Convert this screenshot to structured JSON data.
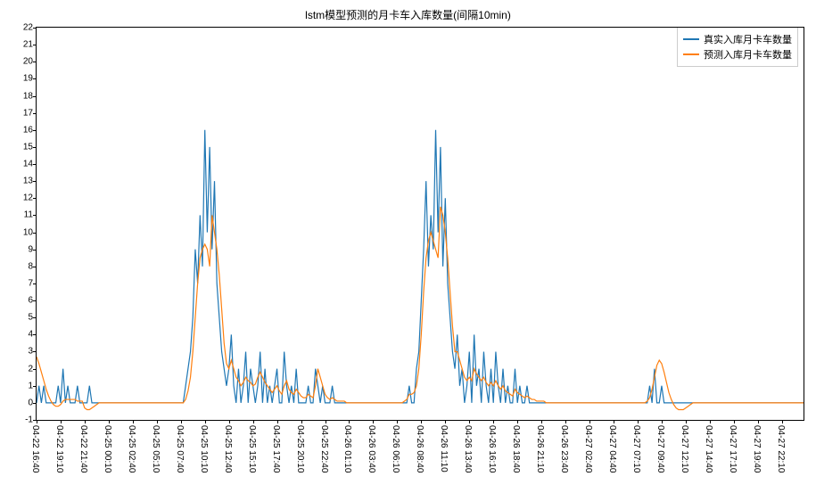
{
  "chart": {
    "type": "line",
    "title": "lstm模型预测的月卡车入库数量(间隔10min)",
    "title_fontsize": 12,
    "background_color": "#ffffff",
    "plot_border_color": "#000000",
    "ylim": [
      -1,
      22
    ],
    "ytick_step": 1,
    "yticks": [
      -1,
      0,
      1,
      2,
      3,
      4,
      5,
      6,
      7,
      8,
      9,
      10,
      11,
      12,
      13,
      14,
      15,
      16,
      17,
      18,
      19,
      20,
      21,
      22
    ],
    "xtick_labels": [
      "04-22 16:40",
      "04-22 19:10",
      "04-22 21:40",
      "04-25 00:10",
      "04-25 02:40",
      "04-25 05:10",
      "04-25 07:40",
      "04-25 10:10",
      "04-25 12:40",
      "04-25 15:10",
      "04-25 17:40",
      "04-25 20:10",
      "04-25 22:40",
      "04-26 01:10",
      "04-26 03:40",
      "04-26 06:10",
      "04-26 08:40",
      "04-26 11:10",
      "04-26 13:40",
      "04-26 16:10",
      "04-26 18:40",
      "04-26 21:10",
      "04-26 23:40",
      "04-27 02:40",
      "04-27 04:40",
      "04-27 07:10",
      "04-27 09:40",
      "04-27 12:10",
      "04-27 14:40",
      "04-27 17:10",
      "04-27 19:40",
      "04-27 22:10"
    ],
    "x_count": 320,
    "xtick_index_step": 10,
    "label_fontsize": 10,
    "legend": {
      "position": "upper-right",
      "border_color": "#cccccc",
      "items": [
        {
          "label": "真实入库月卡车数量",
          "color": "#1f77b4"
        },
        {
          "label": "预测入库月卡车数量",
          "color": "#ff7f0e"
        }
      ]
    },
    "series": [
      {
        "name": "actual",
        "color": "#1f77b4",
        "line_width": 1.2,
        "values": [
          0,
          1,
          0,
          1,
          0,
          0,
          0,
          0,
          0,
          1,
          0,
          2,
          0,
          1,
          0,
          0,
          0,
          1,
          0,
          0,
          0,
          0,
          1,
          0,
          0,
          0,
          0,
          0,
          0,
          0,
          0,
          0,
          0,
          0,
          0,
          0,
          0,
          0,
          0,
          0,
          0,
          0,
          0,
          0,
          0,
          0,
          0,
          0,
          0,
          0,
          0,
          0,
          0,
          0,
          0,
          0,
          0,
          0,
          0,
          0,
          0,
          0,
          1,
          2,
          3,
          5,
          9,
          7,
          11,
          8,
          16,
          10,
          15,
          9,
          13,
          7,
          5,
          3,
          2,
          1,
          2,
          4,
          1,
          0,
          2,
          0,
          1,
          3,
          0,
          2,
          1,
          0,
          1,
          3,
          0,
          2,
          0,
          1,
          0,
          1,
          2,
          0,
          0,
          3,
          1,
          0,
          1,
          0,
          2,
          0,
          0,
          0,
          0,
          1,
          0,
          0,
          2,
          1,
          0,
          1,
          0,
          0,
          0,
          1,
          0,
          0,
          0,
          0,
          0,
          0,
          0,
          0,
          0,
          0,
          0,
          0,
          0,
          0,
          0,
          0,
          0,
          0,
          0,
          0,
          0,
          0,
          0,
          0,
          0,
          0,
          0,
          0,
          0,
          0,
          0,
          1,
          0,
          0,
          2,
          3,
          6,
          9,
          13,
          8,
          11,
          9,
          16,
          10,
          15,
          8,
          12,
          7,
          5,
          3,
          2,
          4,
          1,
          2,
          0,
          1,
          3,
          0,
          4,
          1,
          2,
          0,
          3,
          1,
          0,
          2,
          0,
          3,
          1,
          0,
          2,
          0,
          1,
          0,
          0,
          2,
          0,
          1,
          0,
          0,
          1,
          0,
          0,
          0,
          0,
          0,
          0,
          0,
          0,
          0,
          0,
          0,
          0,
          0,
          0,
          0,
          0,
          0,
          0,
          0,
          0,
          0,
          0,
          0,
          0,
          0,
          0,
          0,
          0,
          0,
          0,
          0,
          0,
          0,
          0,
          0,
          0,
          0,
          0,
          0,
          0,
          0,
          0,
          0,
          0,
          0,
          0,
          0,
          0,
          0,
          0,
          1,
          0,
          2,
          0,
          0,
          1,
          0,
          0,
          0,
          0,
          0,
          0,
          0,
          0,
          0,
          0,
          0,
          0,
          0,
          0,
          0,
          0,
          0,
          0,
          0,
          0,
          0,
          0,
          0,
          0,
          0,
          0,
          0,
          0,
          0,
          0,
          0,
          0,
          0,
          0,
          0,
          0,
          0,
          0,
          0,
          0,
          0,
          0,
          0,
          0,
          0,
          0,
          0,
          0,
          0,
          0,
          0,
          0,
          0,
          0,
          0,
          0,
          0,
          0,
          0
        ]
      },
      {
        "name": "predicted",
        "color": "#ff7f0e",
        "line_width": 1.2,
        "values": [
          2.7,
          2.3,
          1.8,
          1.3,
          0.8,
          0.4,
          0.1,
          -0.1,
          -0.2,
          -0.2,
          -0.1,
          0.1,
          0.2,
          0.2,
          0.2,
          0.2,
          0.2,
          0.1,
          0.1,
          0.1,
          -0.3,
          -0.4,
          -0.4,
          -0.3,
          -0.2,
          -0.1,
          0.0,
          0.0,
          0.0,
          0.0,
          0.0,
          0.0,
          0.0,
          0.0,
          0.0,
          0.0,
          0.0,
          0.0,
          0.0,
          0.0,
          0.0,
          0.0,
          0.0,
          0.0,
          0.0,
          0.0,
          0.0,
          0.0,
          0.0,
          0.0,
          0.0,
          0.0,
          0.0,
          0.0,
          0.0,
          0.0,
          0.0,
          0.0,
          0.0,
          0.0,
          0.0,
          0.0,
          0.2,
          0.7,
          1.5,
          3.0,
          5.0,
          7.0,
          8.5,
          9.0,
          9.3,
          9.0,
          8.0,
          11.0,
          10.0,
          9.0,
          7.5,
          5.5,
          3.5,
          2.3,
          2.0,
          2.5,
          2.0,
          1.5,
          1.3,
          1.0,
          1.2,
          1.5,
          1.3,
          1.2,
          1.0,
          1.1,
          1.5,
          1.8,
          1.5,
          1.2,
          1.0,
          0.8,
          0.6,
          0.8,
          1.0,
          0.7,
          0.5,
          1.0,
          1.3,
          0.8,
          0.6,
          0.5,
          0.8,
          0.6,
          0.4,
          0.3,
          0.3,
          0.5,
          0.4,
          0.3,
          1.0,
          2.0,
          1.5,
          1.0,
          0.5,
          0.3,
          0.2,
          0.3,
          0.2,
          0.1,
          0.1,
          0.1,
          0.1,
          0.0,
          0.0,
          0.0,
          0.0,
          0.0,
          0.0,
          0.0,
          0.0,
          0.0,
          0.0,
          0.0,
          0.0,
          0.0,
          0.0,
          0.0,
          0.0,
          0.0,
          0.0,
          0.0,
          0.0,
          0.0,
          0.0,
          0.0,
          0.0,
          0.1,
          0.2,
          0.5,
          0.5,
          0.6,
          1.0,
          2.0,
          4.0,
          6.5,
          8.5,
          9.5,
          10.0,
          9.5,
          9.0,
          8.5,
          11.5,
          11.0,
          10.0,
          8.5,
          6.5,
          4.5,
          3.0,
          3.0,
          2.5,
          2.0,
          1.5,
          1.3,
          1.5,
          1.3,
          2.0,
          1.7,
          1.5,
          1.3,
          1.5,
          1.2,
          1.0,
          1.2,
          1.0,
          1.3,
          1.0,
          0.8,
          1.0,
          0.7,
          0.6,
          0.5,
          0.4,
          0.8,
          0.6,
          0.5,
          0.4,
          0.3,
          0.4,
          0.3,
          0.2,
          0.2,
          0.1,
          0.1,
          0.1,
          0.1,
          0.0,
          0.0,
          0.0,
          0.0,
          0.0,
          0.0,
          0.0,
          0.0,
          0.0,
          0.0,
          0.0,
          0.0,
          0.0,
          0.0,
          0.0,
          0.0,
          0.0,
          0.0,
          0.0,
          0.0,
          0.0,
          0.0,
          0.0,
          0.0,
          0.0,
          0.0,
          0.0,
          0.0,
          0.0,
          0.0,
          0.0,
          0.0,
          0.0,
          0.0,
          0.0,
          0.0,
          0.0,
          0.0,
          0.0,
          0.0,
          0.0,
          0.0,
          0.1,
          0.3,
          0.8,
          1.5,
          2.2,
          2.5,
          2.3,
          1.8,
          1.2,
          0.6,
          0.2,
          -0.1,
          -0.3,
          -0.4,
          -0.4,
          -0.4,
          -0.3,
          -0.2,
          -0.1,
          0.0,
          0.0,
          0.0,
          0.0,
          0.0,
          0.0,
          0.0,
          0.0,
          0.0,
          0.0,
          0.0,
          0.0,
          0.0,
          0.0,
          0.0,
          0.0,
          0.0,
          0.0,
          0.0,
          0.0,
          0.0,
          0.0,
          0.0,
          0.0,
          0.0,
          0.0,
          0.0,
          0.0,
          0.0,
          0.0,
          0.0,
          0.0,
          0.0,
          0.0,
          0.0,
          0.0,
          0.0,
          0.0,
          0.0,
          0.0,
          0.0,
          0.0,
          0.0,
          0.0,
          0.0,
          0.0,
          0.0
        ]
      }
    ]
  }
}
